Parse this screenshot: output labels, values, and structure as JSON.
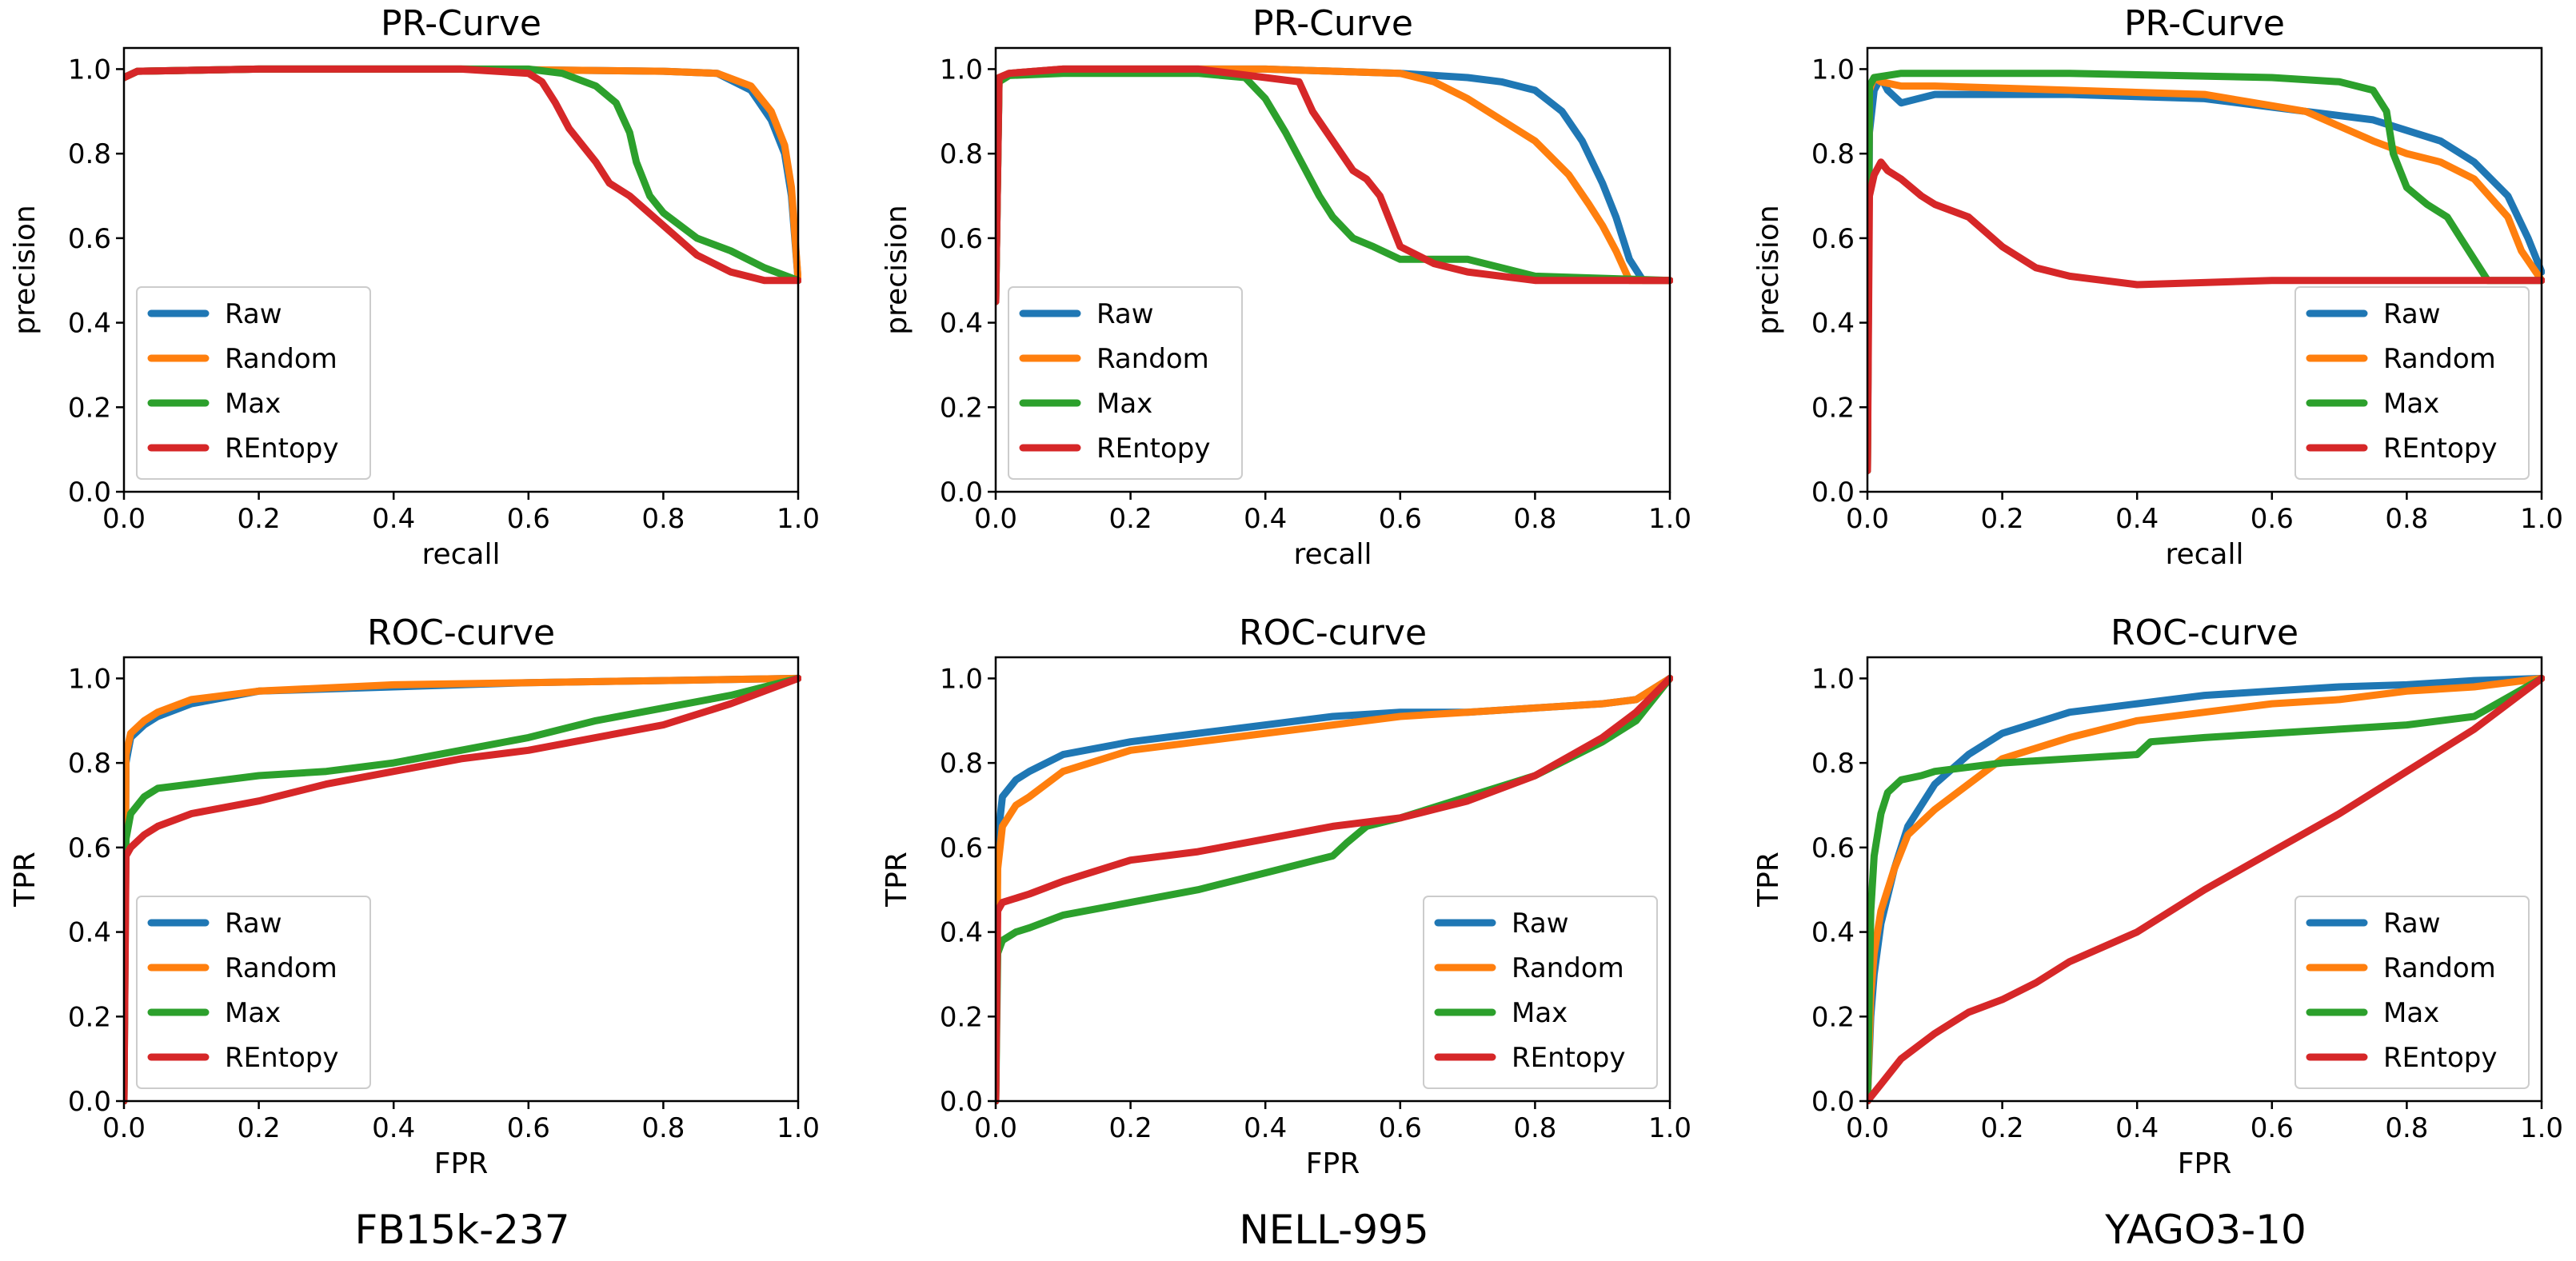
{
  "series_names": [
    "Raw",
    "Random",
    "Max",
    "REntopy"
  ],
  "colors": {
    "Raw": "#1f77b4",
    "Random": "#ff7f0e",
    "Max": "#2ca02c",
    "REntopy": "#d62728"
  },
  "datasets": [
    "FB15k-237",
    "NELL-995",
    "YAGO3-10"
  ],
  "chart_data": [
    {
      "type": "line",
      "id": "pr-fb15k",
      "dataset": "FB15k-237",
      "title": "PR-Curve",
      "xlabel": "recall",
      "ylabel": "precision",
      "xlim": [
        0,
        1
      ],
      "ylim": [
        0,
        1.05
      ],
      "xticks": [
        "0.0",
        "0.2",
        "0.4",
        "0.6",
        "0.8",
        "1.0"
      ],
      "yticks": [
        "0.0",
        "0.2",
        "0.4",
        "0.6",
        "0.8",
        "1.0"
      ],
      "legend": "lower-left",
      "series": [
        {
          "name": "Raw",
          "x": [
            0,
            0.02,
            0.2,
            0.5,
            0.8,
            0.88,
            0.93,
            0.96,
            0.98,
            0.99,
            1.0
          ],
          "y": [
            0.98,
            0.995,
            1.0,
            1.0,
            0.995,
            0.99,
            0.95,
            0.88,
            0.8,
            0.7,
            0.5
          ]
        },
        {
          "name": "Random",
          "x": [
            0,
            0.02,
            0.2,
            0.5,
            0.8,
            0.88,
            0.93,
            0.96,
            0.98,
            0.99,
            1.0
          ],
          "y": [
            0.98,
            0.995,
            1.0,
            1.0,
            0.995,
            0.99,
            0.96,
            0.9,
            0.82,
            0.72,
            0.5
          ]
        },
        {
          "name": "Max",
          "x": [
            0,
            0.02,
            0.2,
            0.5,
            0.6,
            0.65,
            0.7,
            0.73,
            0.75,
            0.76,
            0.78,
            0.8,
            0.85,
            0.9,
            0.95,
            1.0
          ],
          "y": [
            0.98,
            0.995,
            1.0,
            1.0,
            1.0,
            0.99,
            0.96,
            0.92,
            0.85,
            0.78,
            0.7,
            0.66,
            0.6,
            0.57,
            0.53,
            0.5
          ]
        },
        {
          "name": "REntopy",
          "x": [
            0,
            0.02,
            0.2,
            0.5,
            0.6,
            0.62,
            0.64,
            0.66,
            0.68,
            0.7,
            0.72,
            0.75,
            0.8,
            0.85,
            0.9,
            0.95,
            1.0
          ],
          "y": [
            0.98,
            0.995,
            1.0,
            1.0,
            0.99,
            0.97,
            0.92,
            0.86,
            0.82,
            0.78,
            0.73,
            0.7,
            0.63,
            0.56,
            0.52,
            0.5,
            0.5
          ]
        }
      ]
    },
    {
      "type": "line",
      "id": "pr-nell",
      "dataset": "NELL-995",
      "title": "PR-Curve",
      "xlabel": "recall",
      "ylabel": "precision",
      "xlim": [
        0,
        1
      ],
      "ylim": [
        0,
        1.05
      ],
      "xticks": [
        "0.0",
        "0.2",
        "0.4",
        "0.6",
        "0.8",
        "1.0"
      ],
      "yticks": [
        "0.0",
        "0.2",
        "0.4",
        "0.6",
        "0.8",
        "1.0"
      ],
      "legend": "lower-left",
      "series": [
        {
          "name": "Raw",
          "x": [
            0,
            0.005,
            0.02,
            0.1,
            0.4,
            0.6,
            0.7,
            0.75,
            0.8,
            0.84,
            0.87,
            0.9,
            0.92,
            0.94,
            0.96,
            1.0
          ],
          "y": [
            0.45,
            0.98,
            0.99,
            1.0,
            1.0,
            0.99,
            0.98,
            0.97,
            0.95,
            0.9,
            0.83,
            0.73,
            0.65,
            0.55,
            0.5,
            0.5
          ]
        },
        {
          "name": "Random",
          "x": [
            0,
            0.005,
            0.02,
            0.1,
            0.4,
            0.6,
            0.65,
            0.7,
            0.75,
            0.8,
            0.85,
            0.88,
            0.9,
            0.92,
            0.94,
            1.0
          ],
          "y": [
            0.45,
            0.98,
            0.99,
            1.0,
            1.0,
            0.99,
            0.97,
            0.93,
            0.88,
            0.83,
            0.75,
            0.68,
            0.63,
            0.57,
            0.5,
            0.5
          ]
        },
        {
          "name": "Max",
          "x": [
            0,
            0.005,
            0.02,
            0.1,
            0.3,
            0.37,
            0.4,
            0.43,
            0.46,
            0.48,
            0.5,
            0.53,
            0.56,
            0.6,
            0.7,
            0.8,
            1.0
          ],
          "y": [
            0.45,
            0.97,
            0.985,
            0.99,
            0.99,
            0.98,
            0.93,
            0.85,
            0.76,
            0.7,
            0.65,
            0.6,
            0.58,
            0.55,
            0.55,
            0.51,
            0.5
          ]
        },
        {
          "name": "REntopy",
          "x": [
            0,
            0.005,
            0.02,
            0.1,
            0.3,
            0.45,
            0.47,
            0.5,
            0.53,
            0.55,
            0.57,
            0.6,
            0.65,
            0.7,
            0.8,
            1.0
          ],
          "y": [
            0.45,
            0.98,
            0.99,
            1.0,
            1.0,
            0.97,
            0.9,
            0.83,
            0.76,
            0.74,
            0.7,
            0.58,
            0.54,
            0.52,
            0.5,
            0.5
          ]
        }
      ]
    },
    {
      "type": "line",
      "id": "pr-yago",
      "dataset": "YAGO3-10",
      "title": "PR-Curve",
      "xlabel": "recall",
      "ylabel": "precision",
      "xlim": [
        0,
        1
      ],
      "ylim": [
        0,
        1.05
      ],
      "xticks": [
        "0.0",
        "0.2",
        "0.4",
        "0.6",
        "0.8",
        "1.0"
      ],
      "yticks": [
        "0.0",
        "0.2",
        "0.4",
        "0.6",
        "0.8",
        "1.0"
      ],
      "legend": "lower-right",
      "series": [
        {
          "name": "Raw",
          "x": [
            0,
            0.003,
            0.01,
            0.02,
            0.03,
            0.05,
            0.1,
            0.3,
            0.5,
            0.65,
            0.75,
            0.85,
            0.9,
            0.95,
            0.98,
            1.0
          ],
          "y": [
            0.05,
            0.85,
            0.95,
            0.98,
            0.95,
            0.92,
            0.94,
            0.94,
            0.93,
            0.9,
            0.88,
            0.83,
            0.78,
            0.7,
            0.6,
            0.52
          ]
        },
        {
          "name": "Random",
          "x": [
            0,
            0.003,
            0.01,
            0.02,
            0.05,
            0.1,
            0.3,
            0.5,
            0.65,
            0.75,
            0.8,
            0.85,
            0.9,
            0.95,
            0.97,
            1.0
          ],
          "y": [
            0.05,
            0.95,
            0.98,
            0.97,
            0.96,
            0.96,
            0.95,
            0.94,
            0.9,
            0.83,
            0.8,
            0.78,
            0.74,
            0.65,
            0.57,
            0.5
          ]
        },
        {
          "name": "Max",
          "x": [
            0,
            0.003,
            0.01,
            0.05,
            0.3,
            0.6,
            0.7,
            0.75,
            0.77,
            0.78,
            0.8,
            0.83,
            0.86,
            0.88,
            0.9,
            0.92,
            1.0
          ],
          "y": [
            0.05,
            0.96,
            0.98,
            0.99,
            0.99,
            0.98,
            0.97,
            0.95,
            0.9,
            0.8,
            0.72,
            0.68,
            0.65,
            0.6,
            0.55,
            0.5,
            0.5
          ]
        },
        {
          "name": "REntopy",
          "x": [
            0,
            0.003,
            0.01,
            0.02,
            0.03,
            0.05,
            0.08,
            0.1,
            0.15,
            0.2,
            0.25,
            0.3,
            0.35,
            0.4,
            0.6,
            0.8,
            1.0
          ],
          "y": [
            0.05,
            0.7,
            0.75,
            0.78,
            0.76,
            0.74,
            0.7,
            0.68,
            0.65,
            0.58,
            0.53,
            0.51,
            0.5,
            0.49,
            0.5,
            0.5,
            0.5
          ]
        }
      ]
    },
    {
      "type": "line",
      "id": "roc-fb15k",
      "dataset": "FB15k-237",
      "title": "ROC-curve",
      "xlabel": "FPR",
      "ylabel": "TPR",
      "xlim": [
        0,
        1
      ],
      "ylim": [
        0,
        1.05
      ],
      "xticks": [
        "0.0",
        "0.2",
        "0.4",
        "0.6",
        "0.8",
        "1.0"
      ],
      "yticks": [
        "0.0",
        "0.2",
        "0.4",
        "0.6",
        "0.8",
        "1.0"
      ],
      "legend": "lower-left",
      "series": [
        {
          "name": "Raw",
          "x": [
            0,
            0.003,
            0.01,
            0.03,
            0.05,
            0.1,
            0.2,
            0.4,
            0.6,
            0.8,
            1.0
          ],
          "y": [
            0,
            0.8,
            0.86,
            0.89,
            0.91,
            0.94,
            0.97,
            0.98,
            0.99,
            0.995,
            1.0
          ]
        },
        {
          "name": "Random",
          "x": [
            0,
            0.003,
            0.01,
            0.03,
            0.05,
            0.1,
            0.2,
            0.4,
            0.6,
            0.8,
            1.0
          ],
          "y": [
            0,
            0.82,
            0.87,
            0.9,
            0.92,
            0.95,
            0.97,
            0.985,
            0.99,
            0.995,
            1.0
          ]
        },
        {
          "name": "Max",
          "x": [
            0,
            0.003,
            0.01,
            0.03,
            0.05,
            0.1,
            0.2,
            0.3,
            0.4,
            0.5,
            0.6,
            0.7,
            0.8,
            0.9,
            1.0
          ],
          "y": [
            0,
            0.62,
            0.68,
            0.72,
            0.74,
            0.75,
            0.77,
            0.78,
            0.8,
            0.83,
            0.86,
            0.9,
            0.93,
            0.96,
            1.0
          ]
        },
        {
          "name": "REntopy",
          "x": [
            0,
            0.003,
            0.01,
            0.03,
            0.05,
            0.1,
            0.2,
            0.3,
            0.4,
            0.5,
            0.6,
            0.7,
            0.8,
            0.9,
            1.0
          ],
          "y": [
            0,
            0.58,
            0.6,
            0.63,
            0.65,
            0.68,
            0.71,
            0.75,
            0.78,
            0.81,
            0.83,
            0.86,
            0.89,
            0.94,
            1.0
          ]
        }
      ]
    },
    {
      "type": "line",
      "id": "roc-nell",
      "dataset": "NELL-995",
      "title": "ROC-curve",
      "xlabel": "FPR",
      "ylabel": "TPR",
      "xlim": [
        0,
        1
      ],
      "ylim": [
        0,
        1.05
      ],
      "xticks": [
        "0.0",
        "0.2",
        "0.4",
        "0.6",
        "0.8",
        "1.0"
      ],
      "yticks": [
        "0.0",
        "0.2",
        "0.4",
        "0.6",
        "0.8",
        "1.0"
      ],
      "legend": "lower-right",
      "series": [
        {
          "name": "Raw",
          "x": [
            0,
            0.003,
            0.01,
            0.03,
            0.05,
            0.1,
            0.2,
            0.3,
            0.4,
            0.5,
            0.6,
            0.7,
            0.8,
            0.9,
            0.95,
            1.0
          ],
          "y": [
            0,
            0.62,
            0.72,
            0.76,
            0.78,
            0.82,
            0.85,
            0.87,
            0.89,
            0.91,
            0.92,
            0.92,
            0.93,
            0.94,
            0.95,
            1.0
          ]
        },
        {
          "name": "Random",
          "x": [
            0,
            0.003,
            0.01,
            0.03,
            0.05,
            0.1,
            0.2,
            0.3,
            0.4,
            0.5,
            0.6,
            0.7,
            0.8,
            0.9,
            0.95,
            1.0
          ],
          "y": [
            0,
            0.55,
            0.65,
            0.7,
            0.72,
            0.78,
            0.83,
            0.85,
            0.87,
            0.89,
            0.91,
            0.92,
            0.93,
            0.94,
            0.95,
            1.0
          ]
        },
        {
          "name": "Max",
          "x": [
            0,
            0.003,
            0.01,
            0.03,
            0.05,
            0.1,
            0.2,
            0.3,
            0.4,
            0.5,
            0.52,
            0.55,
            0.6,
            0.7,
            0.8,
            0.9,
            0.95,
            1.0
          ],
          "y": [
            0,
            0.35,
            0.38,
            0.4,
            0.41,
            0.44,
            0.47,
            0.5,
            0.54,
            0.58,
            0.61,
            0.65,
            0.67,
            0.72,
            0.77,
            0.85,
            0.9,
            1.0
          ]
        },
        {
          "name": "REntopy",
          "x": [
            0,
            0.003,
            0.01,
            0.03,
            0.05,
            0.1,
            0.2,
            0.3,
            0.4,
            0.5,
            0.6,
            0.7,
            0.8,
            0.9,
            0.95,
            1.0
          ],
          "y": [
            0,
            0.45,
            0.47,
            0.48,
            0.49,
            0.52,
            0.57,
            0.59,
            0.62,
            0.65,
            0.67,
            0.71,
            0.77,
            0.86,
            0.92,
            1.0
          ]
        }
      ]
    },
    {
      "type": "line",
      "id": "roc-yago",
      "dataset": "YAGO3-10",
      "title": "ROC-curve",
      "xlabel": "FPR",
      "ylabel": "TPR",
      "xlim": [
        0,
        1
      ],
      "ylim": [
        0,
        1.05
      ],
      "xticks": [
        "0.0",
        "0.2",
        "0.4",
        "0.6",
        "0.8",
        "1.0"
      ],
      "yticks": [
        "0.0",
        "0.2",
        "0.4",
        "0.6",
        "0.8",
        "1.0"
      ],
      "legend": "lower-right",
      "series": [
        {
          "name": "Raw",
          "x": [
            0,
            0.005,
            0.01,
            0.02,
            0.04,
            0.06,
            0.1,
            0.15,
            0.2,
            0.3,
            0.4,
            0.5,
            0.6,
            0.7,
            0.8,
            0.9,
            1.0
          ],
          "y": [
            0,
            0.2,
            0.3,
            0.42,
            0.55,
            0.65,
            0.75,
            0.82,
            0.87,
            0.92,
            0.94,
            0.96,
            0.97,
            0.98,
            0.985,
            0.995,
            1.0
          ]
        },
        {
          "name": "Random",
          "x": [
            0,
            0.005,
            0.01,
            0.02,
            0.04,
            0.06,
            0.1,
            0.15,
            0.2,
            0.3,
            0.4,
            0.5,
            0.6,
            0.7,
            0.8,
            0.9,
            1.0
          ],
          "y": [
            0,
            0.25,
            0.35,
            0.45,
            0.55,
            0.63,
            0.69,
            0.75,
            0.81,
            0.86,
            0.9,
            0.92,
            0.94,
            0.95,
            0.97,
            0.98,
            1.0
          ]
        },
        {
          "name": "Max",
          "x": [
            0,
            0.005,
            0.01,
            0.02,
            0.03,
            0.05,
            0.08,
            0.1,
            0.2,
            0.3,
            0.4,
            0.42,
            0.5,
            0.6,
            0.7,
            0.8,
            0.9,
            1.0
          ],
          "y": [
            0,
            0.45,
            0.58,
            0.68,
            0.73,
            0.76,
            0.77,
            0.78,
            0.8,
            0.81,
            0.82,
            0.85,
            0.86,
            0.87,
            0.88,
            0.89,
            0.91,
            1.0
          ]
        },
        {
          "name": "REntopy",
          "x": [
            0,
            0.02,
            0.05,
            0.1,
            0.15,
            0.2,
            0.25,
            0.3,
            0.4,
            0.5,
            0.6,
            0.7,
            0.8,
            0.9,
            1.0
          ],
          "y": [
            0,
            0.04,
            0.1,
            0.16,
            0.21,
            0.24,
            0.28,
            0.33,
            0.4,
            0.5,
            0.59,
            0.68,
            0.78,
            0.88,
            1.0
          ]
        }
      ]
    }
  ]
}
